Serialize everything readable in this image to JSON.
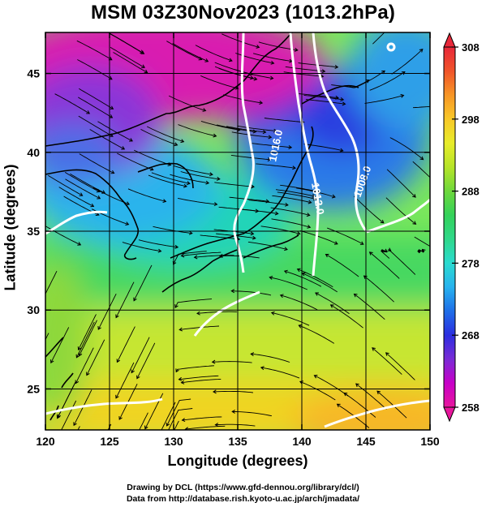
{
  "title": "MSM 03Z30Nov2023 (1013.2hPa)",
  "xlabel": "Longitude (degrees)",
  "ylabel": "Latitude  (degrees)",
  "credits": {
    "line1": "Drawing by DCL (https://www.gfd-dennou.org/library/dcl/)",
    "line2": "Data from http://database.rish.kyoto-u.ac.jp/arch/jmadata/"
  },
  "map_data": {
    "lon_range": [
      120,
      150
    ],
    "lat_range": [
      22.4,
      47.6
    ],
    "x_ticks": [
      120,
      125,
      130,
      135,
      140,
      145,
      150
    ],
    "y_ticks": [
      25,
      30,
      35,
      40,
      45
    ],
    "field": "temperature (K)",
    "contour_labels": [
      "1016.0",
      "1012.0",
      "1008.0"
    ],
    "streamlines": true,
    "colors": {
      "land_outline": "#000000",
      "contour": "#ffffff"
    }
  },
  "colorbar": {
    "min": 258,
    "max": 308,
    "labels": [
      "308",
      "298",
      "288",
      "278",
      "268",
      "258"
    ],
    "colors": [
      "#e8169c",
      "#c800c8",
      "#7a2bd6",
      "#2c2ee0",
      "#1f6ee8",
      "#27b2ee",
      "#2adbd0",
      "#2fd88a",
      "#34d25a",
      "#6ed83c",
      "#b6e428",
      "#e8ec2a",
      "#f8c828",
      "#f79626",
      "#f0542a",
      "#e8283a"
    ]
  }
}
